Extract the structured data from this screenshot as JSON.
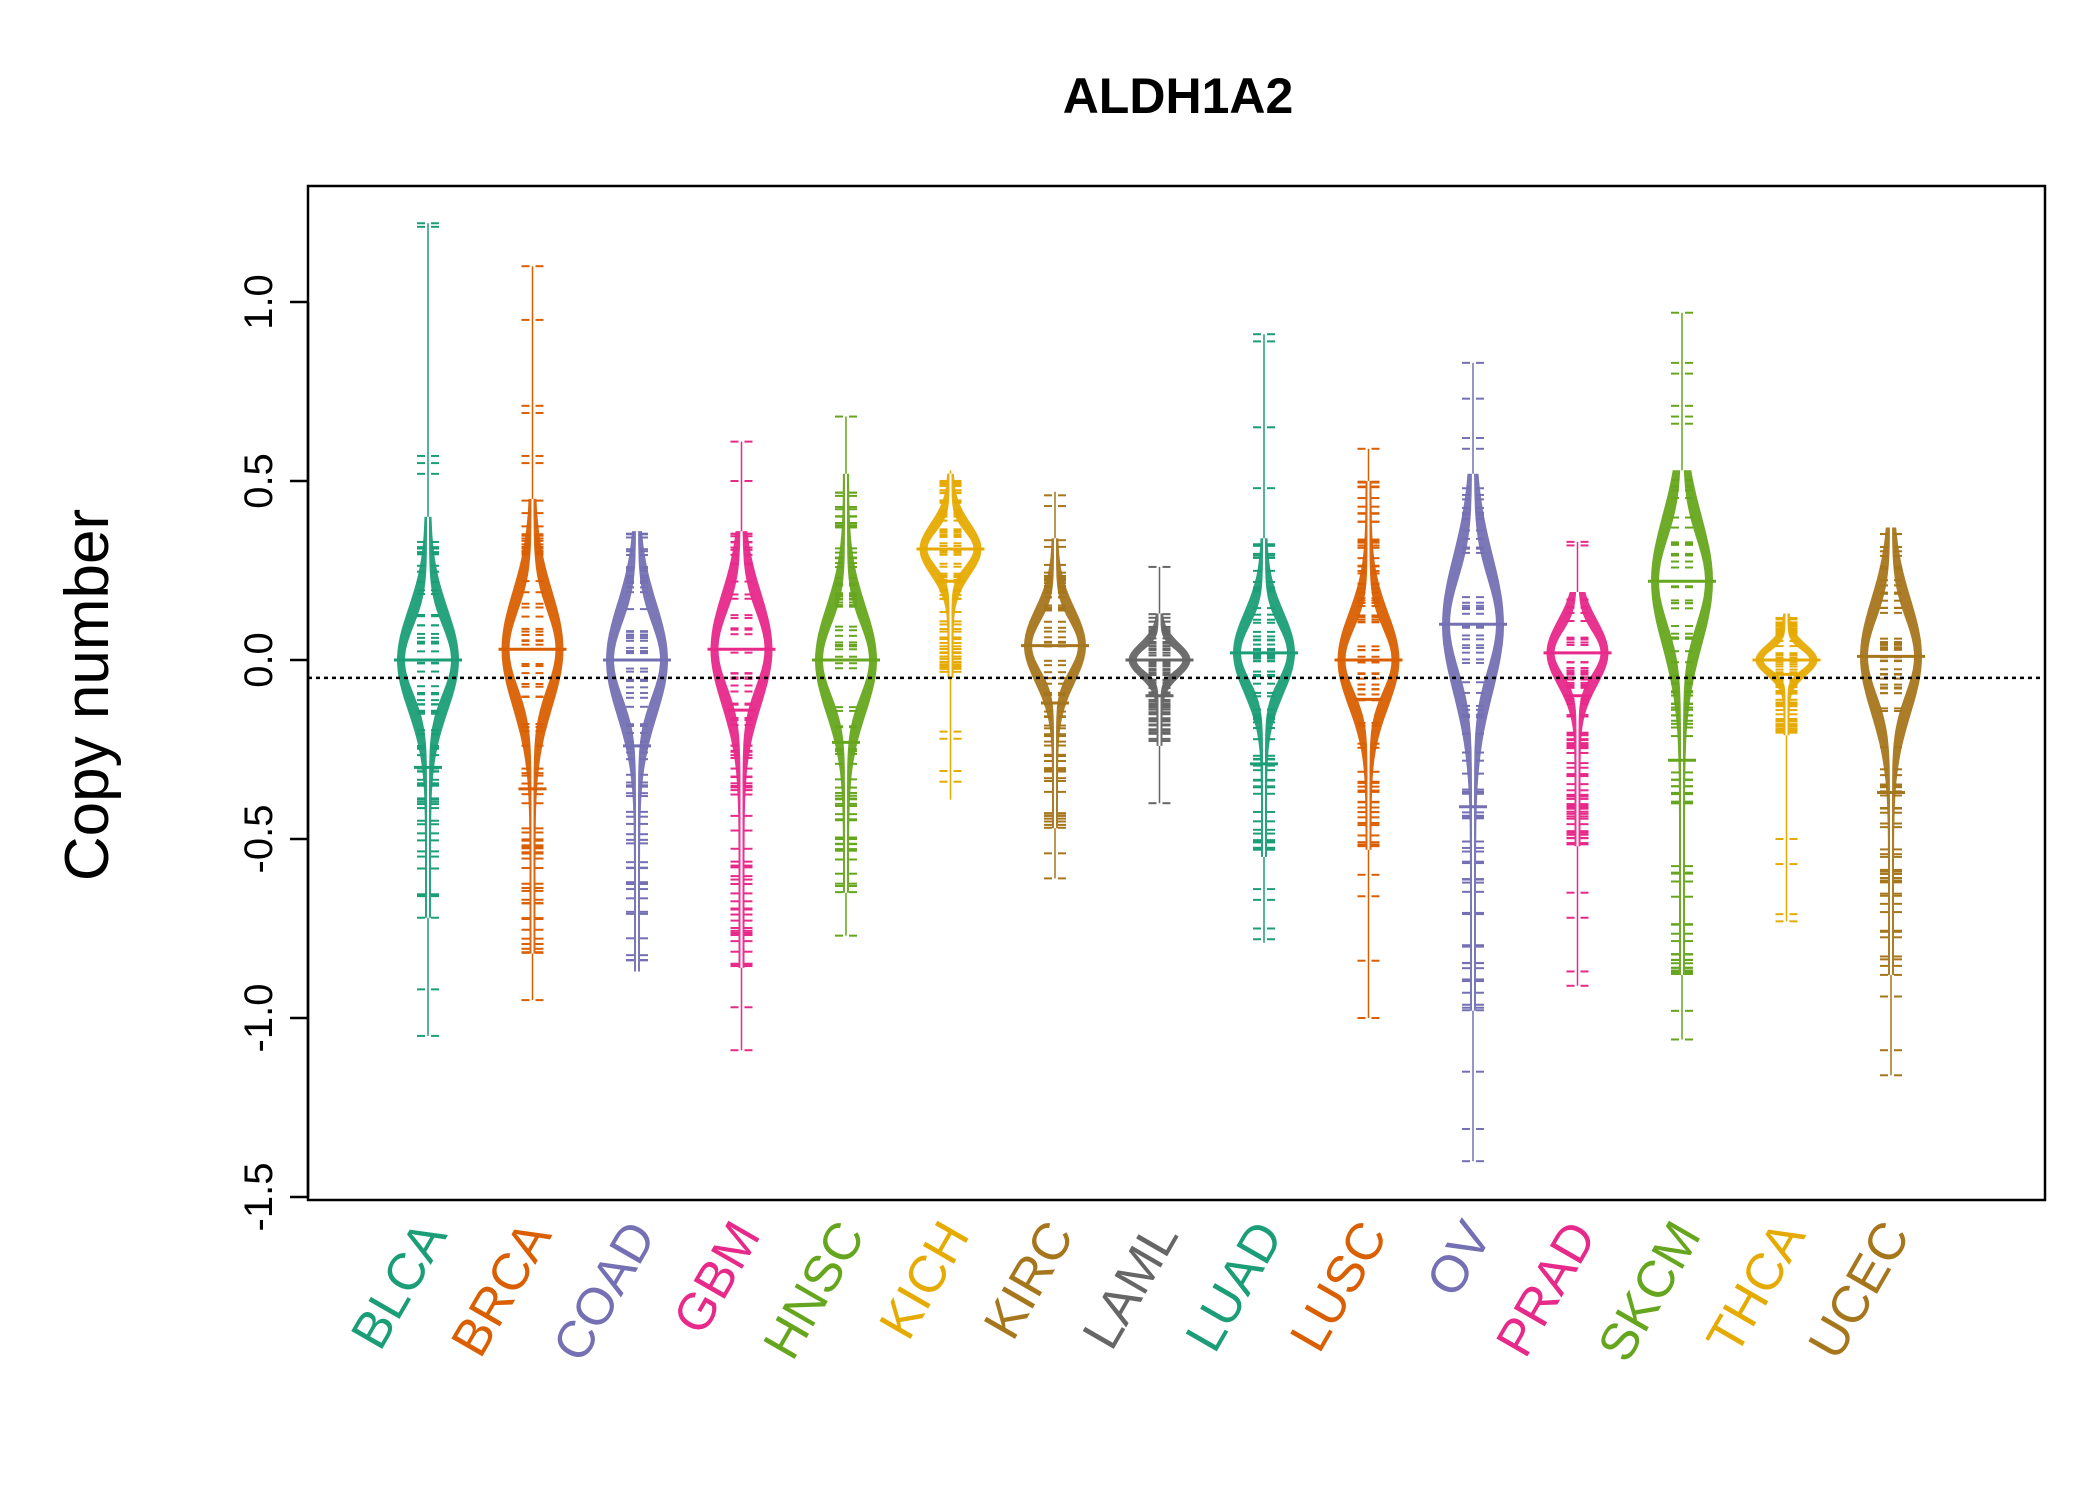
{
  "chart_data": {
    "type": "beanplot",
    "title": "ALDH1A2",
    "xlabel": "",
    "ylabel": "Copy number",
    "ylim": [
      -1.5,
      1.3
    ],
    "yticks": [
      -1.5,
      -1.0,
      -0.5,
      0.0,
      0.5,
      1.0
    ],
    "ytick_labels": [
      "-1.5",
      "-1.0",
      "-0.5",
      "0.0",
      "0.5",
      "1.0"
    ],
    "reference_line": -0.05,
    "categories": [
      "BLCA",
      "BRCA",
      "COAD",
      "GBM",
      "HNSC",
      "KICH",
      "KIRC",
      "LAML",
      "LUAD",
      "LUSC",
      "OV",
      "PRAD",
      "SKCM",
      "THCA",
      "UCEC"
    ],
    "colors": [
      "#1b9e77",
      "#d95f02",
      "#7570b3",
      "#e7298a",
      "#66a61e",
      "#e6ab02",
      "#a6761d",
      "#666666",
      "#1b9e77",
      "#d95f02",
      "#7570b3",
      "#e7298a",
      "#66a61e",
      "#e6ab02",
      "#a6761d"
    ],
    "series": [
      {
        "name": "BLCA",
        "min": -1.05,
        "max": 1.22,
        "median": 0.0,
        "mean": -0.3,
        "dense_low": -0.72,
        "dense_high": 0.4,
        "outliers": [
          1.22,
          1.21,
          0.57,
          0.55,
          0.52,
          -0.92,
          -1.05
        ]
      },
      {
        "name": "BRCA",
        "min": -0.95,
        "max": 1.1,
        "median": 0.03,
        "mean": -0.36,
        "dense_low": -0.82,
        "dense_high": 0.45,
        "outliers": [
          1.1,
          0.95,
          0.71,
          0.69,
          0.57,
          0.55,
          -0.95
        ]
      },
      {
        "name": "COAD",
        "min": -0.87,
        "max": 0.36,
        "median": 0.0,
        "mean": -0.24,
        "dense_low": -0.87,
        "dense_high": 0.36,
        "outliers": []
      },
      {
        "name": "GBM",
        "min": -1.09,
        "max": 0.61,
        "median": 0.03,
        "mean": -0.14,
        "dense_low": -0.86,
        "dense_high": 0.36,
        "outliers": [
          0.61,
          0.5,
          -0.97,
          -1.09
        ]
      },
      {
        "name": "HNSC",
        "min": -0.77,
        "max": 0.68,
        "median": 0.0,
        "mean": -0.23,
        "dense_low": -0.65,
        "dense_high": 0.52,
        "outliers": [
          0.68,
          -0.77
        ]
      },
      {
        "name": "KICH",
        "min": -0.39,
        "max": 0.53,
        "median": 0.31,
        "mean": 0.22,
        "dense_low": -0.05,
        "dense_high": 0.52,
        "outliers": [
          -0.2,
          -0.22,
          -0.31,
          -0.34
        ]
      },
      {
        "name": "KIRC",
        "min": -0.61,
        "max": 0.47,
        "median": 0.04,
        "mean": -0.12,
        "dense_low": -0.47,
        "dense_high": 0.34,
        "outliers": [
          0.46,
          0.43,
          -0.54,
          -0.61
        ]
      },
      {
        "name": "LAML",
        "min": -0.4,
        "max": 0.26,
        "median": 0.0,
        "mean": -0.1,
        "dense_low": -0.24,
        "dense_high": 0.13,
        "outliers": [
          0.26,
          -0.4
        ]
      },
      {
        "name": "LUAD",
        "min": -0.79,
        "max": 0.91,
        "median": 0.02,
        "mean": -0.29,
        "dense_low": -0.55,
        "dense_high": 0.34,
        "outliers": [
          0.91,
          0.89,
          0.65,
          0.48,
          -0.64,
          -0.67,
          -0.75,
          -0.78
        ]
      },
      {
        "name": "LUSC",
        "min": -1.0,
        "max": 0.59,
        "median": 0.0,
        "mean": -0.11,
        "dense_low": -0.53,
        "dense_high": 0.5,
        "outliers": [
          0.59,
          -0.6,
          -0.66,
          -0.84,
          -1.0
        ]
      },
      {
        "name": "OV",
        "min": -1.4,
        "max": 0.83,
        "median": 0.1,
        "mean": -0.41,
        "dense_low": -0.98,
        "dense_high": 0.52,
        "outliers": [
          0.83,
          0.73,
          0.62,
          0.59,
          -1.15,
          -1.31,
          -1.4
        ]
      },
      {
        "name": "PRAD",
        "min": -0.91,
        "max": 0.33,
        "median": 0.02,
        "mean": -0.1,
        "dense_low": -0.52,
        "dense_high": 0.19,
        "outliers": [
          0.33,
          0.32,
          -0.65,
          -0.72,
          -0.87,
          -0.91
        ]
      },
      {
        "name": "SKCM",
        "min": -1.06,
        "max": 0.97,
        "median": 0.22,
        "mean": -0.28,
        "dense_low": -0.88,
        "dense_high": 0.53,
        "outliers": [
          0.97,
          0.83,
          0.8,
          0.71,
          0.68,
          0.66,
          -0.98,
          -1.06
        ]
      },
      {
        "name": "THCA",
        "min": -0.73,
        "max": 0.13,
        "median": 0.0,
        "mean": -0.04,
        "dense_low": -0.21,
        "dense_high": 0.13,
        "outliers": [
          -0.5,
          -0.57,
          -0.71,
          -0.73
        ]
      },
      {
        "name": "UCEC",
        "min": -1.16,
        "max": 0.37,
        "median": 0.01,
        "mean": -0.37,
        "dense_low": -0.88,
        "dense_high": 0.37,
        "outliers": [
          -0.94,
          -1.09,
          -1.16
        ]
      }
    ]
  }
}
